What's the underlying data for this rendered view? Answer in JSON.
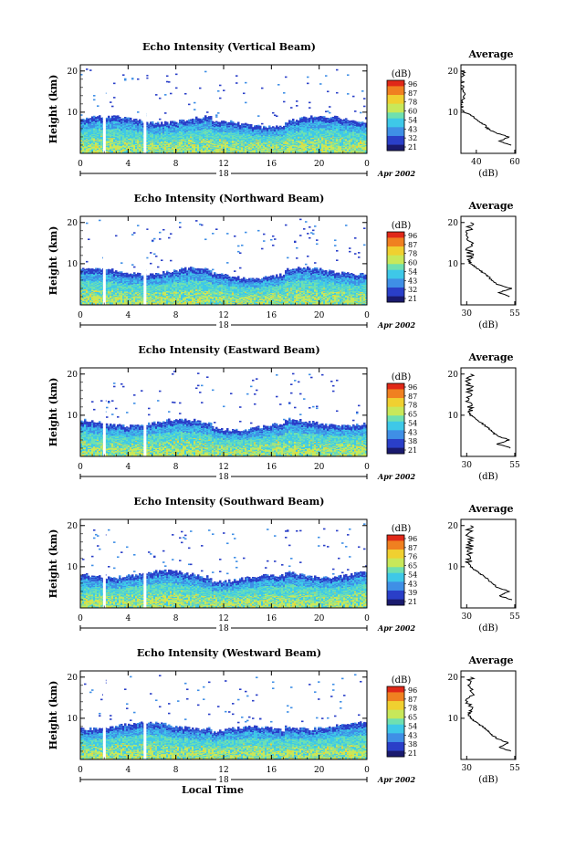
{
  "chart_data": [
    {
      "type": "heatmap",
      "title": "Echo Intensity (Vertical Beam)",
      "ylabel": "Height (km)",
      "xlabel": "",
      "y_ticks": [
        "20",
        "10"
      ],
      "x_ticks": [
        "0",
        "4",
        "8",
        "12",
        "16",
        "20",
        "0"
      ],
      "day": "18",
      "date_label": "Apr 2002",
      "colorbar_unit": "(dB)",
      "colorbar_ticks": [
        "96",
        "87",
        "78",
        "60",
        "54",
        "43",
        "32",
        "21"
      ],
      "avg_title": "Average",
      "avg_xlabel": "(dB)",
      "avg_x_ticks": [
        "40",
        "60"
      ],
      "avg_y_ticks": [
        "20",
        "10"
      ],
      "avg_profile": [
        {
          "height_km": 2,
          "db": 58
        },
        {
          "height_km": 3,
          "db": 52
        },
        {
          "height_km": 4,
          "db": 57
        },
        {
          "height_km": 5,
          "db": 50
        },
        {
          "height_km": 6,
          "db": 46
        },
        {
          "height_km": 7,
          "db": 44
        },
        {
          "height_km": 8,
          "db": 41
        },
        {
          "height_km": 9,
          "db": 38
        },
        {
          "height_km": 10,
          "db": 34
        },
        {
          "height_km": 11,
          "db": 31
        },
        {
          "height_km": 12,
          "db": 32
        },
        {
          "height_km": 14,
          "db": 33
        },
        {
          "height_km": 16,
          "db": 32
        },
        {
          "height_km": 18,
          "db": 33
        },
        {
          "height_km": 20,
          "db": 32
        }
      ]
    },
    {
      "type": "heatmap",
      "title": "Echo Intensity (Northward Beam)",
      "ylabel": "Height (km)",
      "xlabel": "",
      "y_ticks": [
        "20",
        "10"
      ],
      "x_ticks": [
        "0",
        "4",
        "8",
        "12",
        "16",
        "20",
        "0"
      ],
      "day": "18",
      "date_label": "Apr 2002",
      "colorbar_unit": "(dB)",
      "colorbar_ticks": [
        "96",
        "87",
        "78",
        "60",
        "54",
        "43",
        "32",
        "21"
      ],
      "avg_title": "Average",
      "avg_xlabel": "(dB)",
      "avg_x_ticks": [
        "30",
        "55"
      ],
      "avg_y_ticks": [
        "20",
        "10"
      ],
      "avg_profile": [
        {
          "height_km": 2,
          "db": 52
        },
        {
          "height_km": 3,
          "db": 47
        },
        {
          "height_km": 4,
          "db": 53
        },
        {
          "height_km": 5,
          "db": 46
        },
        {
          "height_km": 6,
          "db": 43
        },
        {
          "height_km": 7,
          "db": 41
        },
        {
          "height_km": 8,
          "db": 38
        },
        {
          "height_km": 9,
          "db": 35
        },
        {
          "height_km": 10,
          "db": 32
        },
        {
          "height_km": 11,
          "db": 31
        },
        {
          "height_km": 12,
          "db": 32
        },
        {
          "height_km": 14,
          "db": 31
        },
        {
          "height_km": 16,
          "db": 32
        },
        {
          "height_km": 18,
          "db": 31
        },
        {
          "height_km": 20,
          "db": 32
        }
      ]
    },
    {
      "type": "heatmap",
      "title": "Echo Intensity (Eastward Beam)",
      "ylabel": "Height (km)",
      "xlabel": "",
      "y_ticks": [
        "20",
        "10"
      ],
      "x_ticks": [
        "0",
        "4",
        "8",
        "12",
        "16",
        "20",
        "0"
      ],
      "day": "18",
      "date_label": "Apr 2002",
      "colorbar_unit": "(dB)",
      "colorbar_ticks": [
        "96",
        "87",
        "78",
        "65",
        "54",
        "43",
        "38",
        "21"
      ],
      "avg_title": "Average",
      "avg_xlabel": "(dB)",
      "avg_x_ticks": [
        "30",
        "55"
      ],
      "avg_y_ticks": [
        "20",
        "10"
      ],
      "avg_profile": [
        {
          "height_km": 2,
          "db": 53
        },
        {
          "height_km": 3,
          "db": 46
        },
        {
          "height_km": 4,
          "db": 52
        },
        {
          "height_km": 5,
          "db": 46
        },
        {
          "height_km": 6,
          "db": 43
        },
        {
          "height_km": 7,
          "db": 41
        },
        {
          "height_km": 8,
          "db": 38
        },
        {
          "height_km": 9,
          "db": 35
        },
        {
          "height_km": 10,
          "db": 32
        },
        {
          "height_km": 11,
          "db": 31
        },
        {
          "height_km": 12,
          "db": 32
        },
        {
          "height_km": 14,
          "db": 31
        },
        {
          "height_km": 16,
          "db": 32
        },
        {
          "height_km": 18,
          "db": 31
        },
        {
          "height_km": 20,
          "db": 32
        }
      ]
    },
    {
      "type": "heatmap",
      "title": "Echo Intensity (Southward Beam)",
      "ylabel": "Height (km)",
      "xlabel": "",
      "y_ticks": [
        "20",
        "10"
      ],
      "x_ticks": [
        "0",
        "4",
        "8",
        "12",
        "16",
        "20",
        "0"
      ],
      "day": "18",
      "date_label": "Apr 2002",
      "colorbar_unit": "(dB)",
      "colorbar_ticks": [
        "96",
        "87",
        "76",
        "65",
        "54",
        "43",
        "39",
        "21"
      ],
      "avg_title": "Average",
      "avg_xlabel": "(dB)",
      "avg_x_ticks": [
        "30",
        "55"
      ],
      "avg_y_ticks": [
        "20",
        "10"
      ],
      "avg_profile": [
        {
          "height_km": 2,
          "db": 53
        },
        {
          "height_km": 3,
          "db": 47
        },
        {
          "height_km": 4,
          "db": 52
        },
        {
          "height_km": 5,
          "db": 46
        },
        {
          "height_km": 6,
          "db": 43
        },
        {
          "height_km": 7,
          "db": 41
        },
        {
          "height_km": 8,
          "db": 38
        },
        {
          "height_km": 9,
          "db": 35
        },
        {
          "height_km": 10,
          "db": 32
        },
        {
          "height_km": 11,
          "db": 31
        },
        {
          "height_km": 12,
          "db": 32
        },
        {
          "height_km": 14,
          "db": 31
        },
        {
          "height_km": 16,
          "db": 32
        },
        {
          "height_km": 18,
          "db": 31
        },
        {
          "height_km": 20,
          "db": 32
        }
      ]
    },
    {
      "type": "heatmap",
      "title": "Echo Intensity (Westward Beam)",
      "ylabel": "Height (km)",
      "xlabel": "Local Time",
      "y_ticks": [
        "20",
        "10"
      ],
      "x_ticks": [
        "0",
        "4",
        "8",
        "12",
        "16",
        "20",
        "0"
      ],
      "day": "18",
      "date_label": "Apr 2002",
      "colorbar_unit": "(dB)",
      "colorbar_ticks": [
        "96",
        "87",
        "78",
        "65",
        "54",
        "43",
        "38",
        "21"
      ],
      "avg_title": "Average",
      "avg_xlabel": "(dB)",
      "avg_x_ticks": [
        "30",
        "55"
      ],
      "avg_y_ticks": [
        "20",
        "10"
      ],
      "avg_profile": [
        {
          "height_km": 2,
          "db": 53
        },
        {
          "height_km": 3,
          "db": 47
        },
        {
          "height_km": 4,
          "db": 52
        },
        {
          "height_km": 5,
          "db": 46
        },
        {
          "height_km": 6,
          "db": 43
        },
        {
          "height_km": 7,
          "db": 41
        },
        {
          "height_km": 8,
          "db": 38
        },
        {
          "height_km": 9,
          "db": 35
        },
        {
          "height_km": 10,
          "db": 32
        },
        {
          "height_km": 11,
          "db": 31
        },
        {
          "height_km": 12,
          "db": 32
        },
        {
          "height_km": 14,
          "db": 31
        },
        {
          "height_km": 16,
          "db": 32
        },
        {
          "height_km": 18,
          "db": 31
        },
        {
          "height_km": 20,
          "db": 32
        }
      ]
    }
  ],
  "colors": {
    "colormap": [
      "#1a1a6e",
      "#2a3fc8",
      "#3f8fe6",
      "#3ec8e8",
      "#6fe0b0",
      "#c8e85a",
      "#f0d030",
      "#f08020",
      "#e02818"
    ],
    "gap": "#ffffff"
  }
}
